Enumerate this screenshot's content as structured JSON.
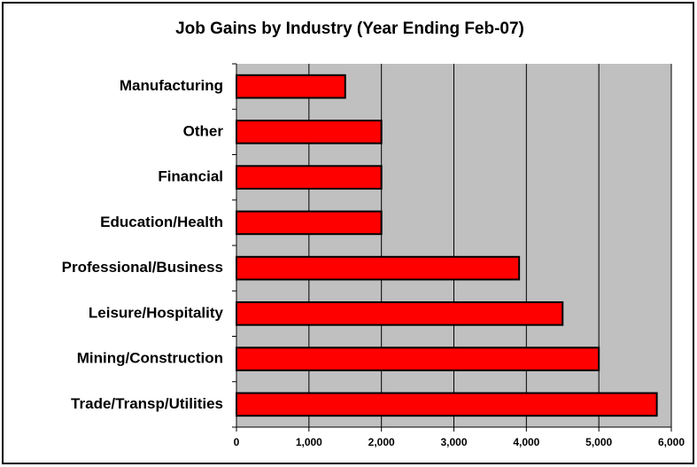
{
  "chart_data": {
    "type": "bar",
    "orientation": "horizontal",
    "title": "Job Gains by Industry (Year Ending Feb-07)",
    "categories": [
      "Manufacturing",
      "Other",
      "Financial",
      "Education/Health",
      "Professional/Business",
      "Leisure/Hospitality",
      "Mining/Construction",
      "Trade/Transp/Utilities"
    ],
    "values": [
      1500,
      2000,
      2000,
      2000,
      3900,
      4500,
      5000,
      5800
    ],
    "color": "#ff0000",
    "xlim": [
      0,
      6000
    ],
    "xticks": [
      0,
      {
        "value": 1000,
        "label": "1,000"
      },
      {
        "value": 2000,
        "label": "2,000"
      },
      {
        "value": 3000,
        "label": "3,000"
      },
      {
        "value": 4000,
        "label": "4,000"
      },
      {
        "value": 5000,
        "label": "5,000"
      },
      {
        "value": 6000,
        "label": "6,000"
      }
    ],
    "grid": true
  }
}
